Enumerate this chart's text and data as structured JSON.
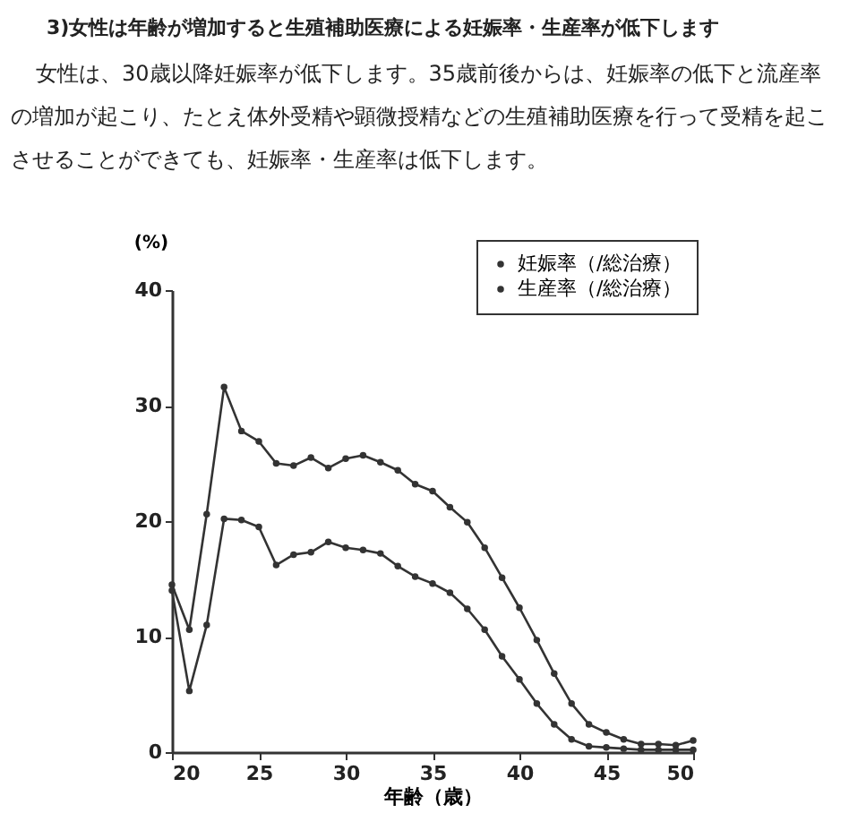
{
  "chart_data": {
    "type": "line",
    "title": "3)女性は年齢が増加すると生殖補助医療による妊娠率・生産率が低下します",
    "subtitle": "女性は、30歳以降妊娠率が低下します。35歳前後からは、妊娠率の低下と流産率の増加が起こり、たとえ体外受精や顕微授精などの生殖補助医療を行って受精を起こさせることができても、妊娠率・生産率は低下します。",
    "xlabel": "年齢（歳）",
    "ylabel": "(%)",
    "x": [
      20,
      21,
      22,
      23,
      24,
      25,
      26,
      27,
      28,
      29,
      30,
      31,
      32,
      33,
      34,
      35,
      36,
      37,
      38,
      39,
      40,
      41,
      42,
      43,
      44,
      45,
      46,
      47,
      48,
      49,
      50
    ],
    "series": [
      {
        "name": "妊娠率（/総治療）",
        "color": "#333333",
        "values": [
          14.5,
          10.6,
          20.6,
          31.6,
          27.8,
          26.9,
          25.0,
          24.8,
          25.5,
          24.6,
          25.4,
          25.7,
          25.1,
          24.4,
          23.2,
          22.6,
          21.2,
          19.9,
          17.7,
          15.1,
          12.5,
          9.7,
          6.8,
          4.2,
          2.4,
          1.7,
          1.1,
          0.7,
          0.7,
          0.6,
          1.0
        ]
      },
      {
        "name": "生産率（/総治療）",
        "color": "#333333",
        "values": [
          14.0,
          5.3,
          11.0,
          20.2,
          20.1,
          19.5,
          16.2,
          17.1,
          17.3,
          18.2,
          17.7,
          17.5,
          17.2,
          16.1,
          15.2,
          14.6,
          13.8,
          12.4,
          10.6,
          8.3,
          6.3,
          4.2,
          2.4,
          1.1,
          0.5,
          0.4,
          0.3,
          0.2,
          0.2,
          0.2,
          0.2
        ]
      }
    ],
    "xlim": [
      20,
      50
    ],
    "ylim": [
      0,
      40
    ],
    "xticks": [
      20,
      25,
      30,
      35,
      40,
      45,
      50
    ],
    "yticks": [
      0,
      10,
      20,
      30,
      40
    ],
    "legend": "top right",
    "marker": "circle"
  }
}
